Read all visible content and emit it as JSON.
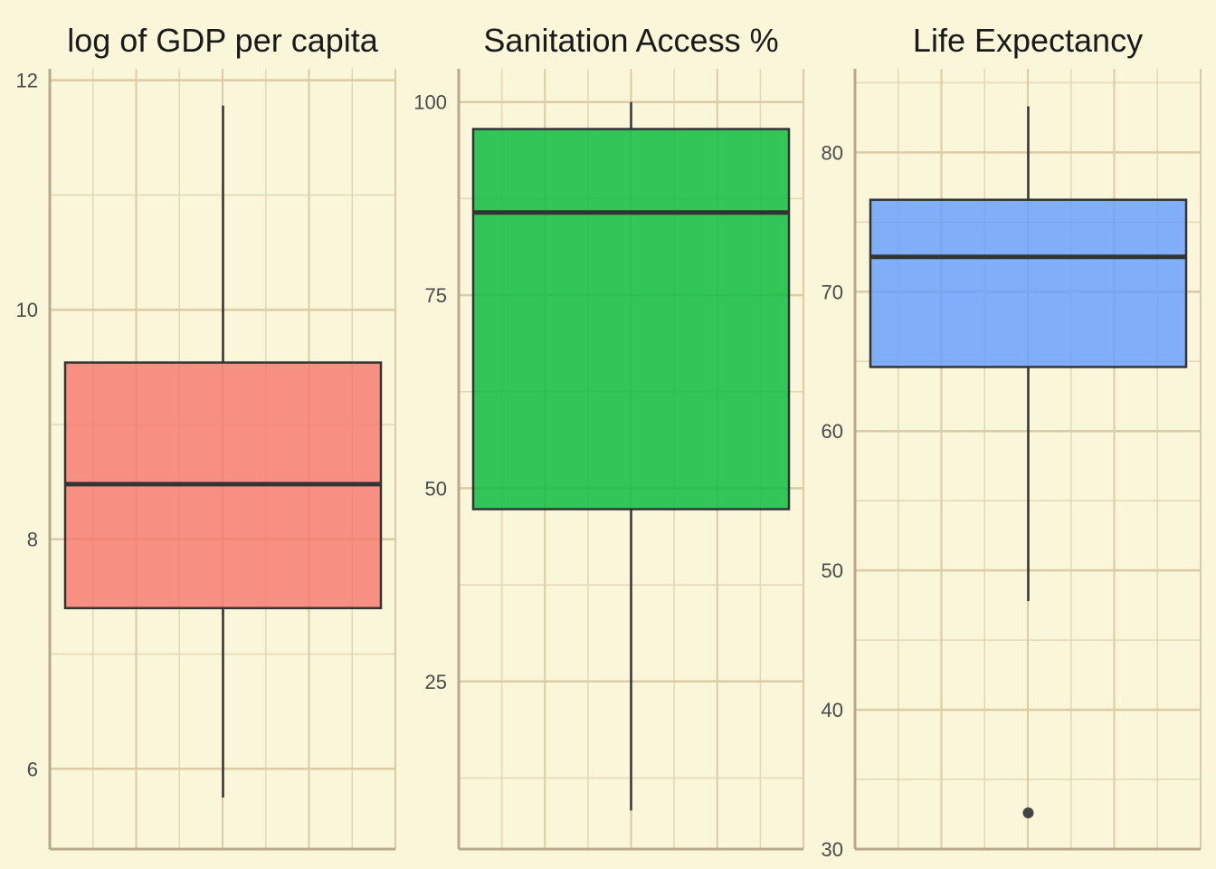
{
  "chart_data": [
    {
      "type": "box",
      "title": "log of GDP per capita",
      "ylim": [
        5.3,
        12.1
      ],
      "yticks": [
        6,
        8,
        10,
        12
      ],
      "tick_labels": [
        "6",
        "8",
        "10",
        "12"
      ],
      "box": {
        "whisker_low": 5.75,
        "q1": 7.4,
        "median": 8.48,
        "q3": 9.54,
        "whisker_high": 11.78
      },
      "outliers": [],
      "fill": "#f8766d"
    },
    {
      "type": "box",
      "title": "Sanitation Access %",
      "ylim": [
        3.3,
        104.3
      ],
      "yticks": [
        25,
        50,
        75,
        100
      ],
      "tick_labels": [
        "25",
        "50",
        "75",
        "100"
      ],
      "box": {
        "whisker_low": 8.3,
        "q1": 47.3,
        "median": 85.7,
        "q3": 96.5,
        "whisker_high": 100
      },
      "outliers": [],
      "fill": "#00ba38"
    },
    {
      "type": "box",
      "title": "Life Expectancy",
      "ylim": [
        30,
        86
      ],
      "yticks": [
        30,
        40,
        50,
        60,
        70,
        80
      ],
      "tick_labels": [
        "30",
        "40",
        "50",
        "60",
        "70",
        "80"
      ],
      "box": {
        "whisker_low": 47.8,
        "q1": 64.6,
        "median": 72.5,
        "q3": 76.6,
        "whisker_high": 83.3
      },
      "outliers": [
        32.6
      ],
      "fill": "#619cff"
    }
  ]
}
